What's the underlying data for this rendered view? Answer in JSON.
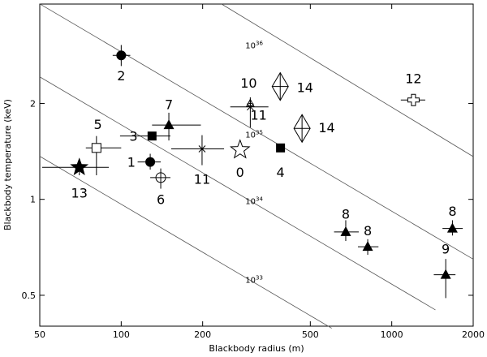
{
  "chart_data": {
    "type": "scatter",
    "title": "",
    "xlabel": "Blackbody radius (m)",
    "ylabel": "Blackbody temperature (keV)",
    "xscale": "log",
    "yscale": "log",
    "xlim": [
      50,
      2000
    ],
    "ylim": [
      0.4,
      4.1
    ],
    "x_ticks": [
      {
        "value": 50,
        "label": "50"
      },
      {
        "value": 100,
        "label": "100"
      },
      {
        "value": 200,
        "label": "200"
      },
      {
        "value": 500,
        "label": "500"
      },
      {
        "value": 1000,
        "label": "1000"
      },
      {
        "value": 2000,
        "label": "2000"
      }
    ],
    "y_ticks": [
      {
        "value": 0.5,
        "label": "0.5"
      },
      {
        "value": 1,
        "label": "1"
      },
      {
        "value": 2,
        "label": "2"
      }
    ],
    "grid": false,
    "legend": "none",
    "iso_lines": [
      {
        "label_base": "10",
        "label_exp": "33",
        "points": [
          [
            50,
            1.365
          ],
          [
            600,
            0.394
          ]
        ],
        "label_at": [
          310,
          0.56
        ]
      },
      {
        "label_base": "10",
        "label_exp": "34",
        "points": [
          [
            50,
            2.423
          ],
          [
            1450,
            0.45
          ]
        ],
        "label_at": [
          310,
          0.99
        ]
      },
      {
        "label_base": "10",
        "label_exp": "35",
        "points": [
          [
            50,
            4.105
          ],
          [
            2000,
            0.649
          ]
        ],
        "label_at": [
          310,
          1.6
        ]
      },
      {
        "label_base": "10",
        "label_exp": "36",
        "points": [
          [
            235,
            4.1
          ],
          [
            2000,
            1.362
          ]
        ],
        "label_at": [
          310,
          3.05
        ]
      }
    ],
    "points": [
      {
        "label": "0",
        "x": 275,
        "y": 1.43,
        "marker": "open-star",
        "xerr": [
          270,
          280
        ],
        "yerr": [
          1.41,
          1.45
        ],
        "label_at": [
          275,
          1.22
        ]
      },
      {
        "label": "1",
        "x": 128,
        "y": 1.31,
        "marker": "filled-circle",
        "xerr": [
          115,
          140
        ],
        "yerr": [
          1.24,
          1.39
        ],
        "label_at": [
          109,
          1.31
        ]
      },
      {
        "label": "2",
        "x": 100,
        "y": 2.83,
        "marker": "filled-circle",
        "xerr": [
          93,
          108
        ],
        "yerr": [
          2.62,
          3.05
        ],
        "label_at": [
          100,
          2.45
        ]
      },
      {
        "label": "3",
        "x": 130,
        "y": 1.58,
        "marker": "filled-square",
        "xerr": [
          99,
          152
        ],
        "yerr": [
          1.58,
          1.58
        ],
        "label_at": [
          111,
          1.58
        ]
      },
      {
        "label": "4",
        "x": 388,
        "y": 1.45,
        "marker": "filled-square",
        "xerr": [
          388,
          388
        ],
        "yerr": [
          1.45,
          1.45
        ],
        "label_at": [
          388,
          1.22
        ]
      },
      {
        "label": "5",
        "x": 81,
        "y": 1.45,
        "marker": "open-square",
        "xerr": [
          74,
          100
        ],
        "yerr": [
          1.19,
          1.58
        ],
        "label_at": [
          82,
          1.72
        ]
      },
      {
        "label": "6",
        "x": 140,
        "y": 1.17,
        "marker": "open-circle-cross",
        "xerr": [
          128,
          152
        ],
        "yerr": [
          1.08,
          1.25
        ],
        "label_at": [
          140,
          1.0
        ]
      },
      {
        "label": "7",
        "x": 150,
        "y": 1.71,
        "marker": "filled-triangle",
        "xerr": [
          130,
          197
        ],
        "yerr": [
          1.53,
          1.87
        ],
        "label_at": [
          150,
          1.99
        ]
      },
      {
        "label": "8",
        "x": 676,
        "y": 0.79,
        "marker": "filled-triangle",
        "xerr": [
          612,
          755
        ],
        "yerr": [
          0.74,
          0.86
        ],
        "label_at": [
          676,
          0.9
        ]
      },
      {
        "label": "8",
        "x": 815,
        "y": 0.71,
        "marker": "filled-triangle",
        "xerr": [
          750,
          893
        ],
        "yerr": [
          0.67,
          0.75
        ],
        "label_at": [
          815,
          0.8
        ]
      },
      {
        "label": "8",
        "x": 1676,
        "y": 0.81,
        "marker": "filled-triangle",
        "xerr": [
          1540,
          1830
        ],
        "yerr": [
          0.77,
          0.86
        ],
        "label_at": [
          1676,
          0.92
        ]
      },
      {
        "label": "9",
        "x": 1583,
        "y": 0.58,
        "marker": "filled-triangle",
        "xerr": [
          1430,
          1720
        ],
        "yerr": [
          0.49,
          0.65
        ],
        "label_at": [
          1583,
          0.7
        ]
      },
      {
        "label": "10",
        "x": 300,
        "y": 2.0,
        "marker": "open-triangle",
        "xerr": [
          296,
          304
        ],
        "yerr": [
          1.97,
          2.04
        ],
        "label_at": [
          296,
          2.32
        ]
      },
      {
        "label": "11",
        "x": 300,
        "y": 1.95,
        "marker": "cross",
        "xerr": [
          253,
          350
        ],
        "yerr": [
          1.68,
          2.09
        ],
        "label_at": [
          322,
          1.84
        ]
      },
      {
        "label": "11",
        "x": 199,
        "y": 1.44,
        "marker": "cross",
        "xerr": [
          153,
          240
        ],
        "yerr": [
          1.28,
          1.59
        ],
        "label_at": [
          199,
          1.16
        ]
      },
      {
        "label": "12",
        "x": 1203,
        "y": 2.05,
        "marker": "open-plus",
        "xerr": [
          1080,
          1330
        ],
        "yerr": [
          2.03,
          2.07
        ],
        "label_at": [
          1203,
          2.4
        ]
      },
      {
        "label": "13",
        "x": 70,
        "y": 1.26,
        "marker": "filled-star",
        "xerr": [
          51,
          90
        ],
        "yerr": [
          1.19,
          1.34
        ],
        "label_at": [
          70,
          1.05
        ]
      },
      {
        "label": "14",
        "x": 387,
        "y": 2.26,
        "marker": "open-diamond",
        "xerr": [
          383,
          392
        ],
        "yerr": [
          2.22,
          2.3
        ],
        "label_at": [
          478,
          2.25
        ]
      },
      {
        "label": "14",
        "x": 466,
        "y": 1.67,
        "marker": "open-diamond",
        "xerr": [
          462,
          470
        ],
        "yerr": [
          1.63,
          1.71
        ],
        "label_at": [
          575,
          1.68
        ]
      }
    ]
  }
}
